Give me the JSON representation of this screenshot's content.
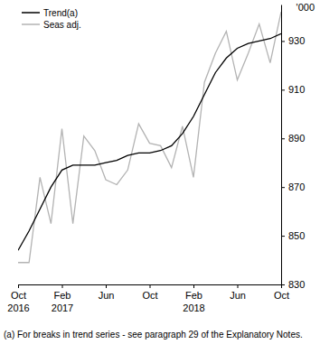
{
  "chart_data": {
    "type": "line",
    "categories": [
      "Oct 2016",
      null,
      null,
      null,
      "Feb 2017",
      null,
      null,
      null,
      "Jun",
      null,
      null,
      null,
      "Oct",
      null,
      null,
      null,
      "Feb 2018",
      null,
      null,
      null,
      "Jun",
      null,
      null,
      null,
      "Oct"
    ],
    "series": [
      {
        "name": "Trend(a)",
        "color": "#000000",
        "values": [
          844,
          852,
          861,
          870,
          877,
          879,
          879,
          879,
          880,
          881,
          883,
          884,
          884,
          885,
          887,
          892,
          899,
          908,
          917,
          923,
          927,
          929,
          930,
          931,
          933
        ]
      },
      {
        "name": "Seas adj.",
        "color": "#b3b3b3",
        "values": [
          839,
          839,
          874,
          855,
          894,
          855,
          891,
          885,
          873,
          871,
          877,
          896,
          888,
          887,
          878,
          895,
          874,
          913,
          925,
          934,
          914,
          925,
          937,
          921,
          942
        ]
      }
    ],
    "ylabel": "'000",
    "ylim": [
      830,
      945
    ],
    "yticks": [
      830,
      850,
      870,
      890,
      910,
      930
    ],
    "grid": false,
    "legend": "top-left",
    "annotations": [
      "(a) For breaks in trend series - see paragraph 29 of the Explanatory Notes."
    ]
  }
}
